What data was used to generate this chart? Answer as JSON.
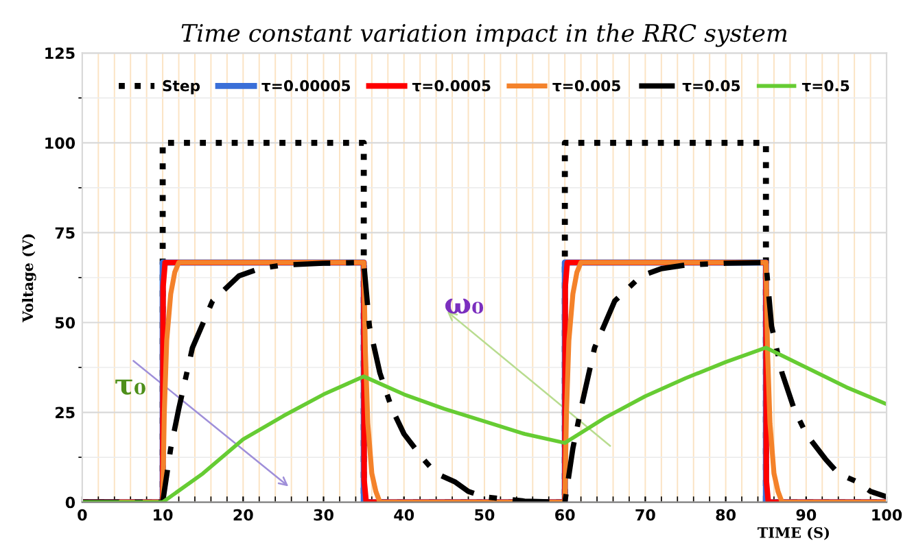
{
  "chart_data": {
    "type": "line",
    "title": "Time constant variation impact in the RRC system",
    "xlabel": "TIME (S)",
    "ylabel": "Voltage (V)",
    "xlim": [
      0,
      100
    ],
    "xticks": [
      0,
      10,
      20,
      30,
      40,
      50,
      60,
      70,
      80,
      90,
      100
    ],
    "ylim": [
      0,
      125
    ],
    "yticks": [
      0,
      25,
      50,
      75,
      100,
      125
    ],
    "grid": true,
    "legend": "top",
    "marker": "none",
    "annotations": [
      "τ₀",
      "ω₀"
    ],
    "series": [
      {
        "name": "Step",
        "color": "#000000",
        "line_style": "dotted",
        "x": [
          0,
          10,
          10,
          35,
          35,
          60,
          60,
          85,
          85,
          100
        ],
        "values": [
          0,
          0,
          100,
          100,
          0,
          0,
          100,
          100,
          0,
          0
        ]
      },
      {
        "name": "τ=0.00005",
        "color": "#3a6fd8",
        "line_style": "solid",
        "x": [
          0,
          10,
          10,
          35,
          35,
          60,
          60,
          85,
          85,
          100
        ],
        "values": [
          0,
          0,
          66.7,
          66.7,
          0,
          0,
          66.7,
          66.7,
          0,
          0
        ]
      },
      {
        "name": "τ=0.0005",
        "color": "#ff0000",
        "line_style": "solid",
        "x": [
          0,
          10,
          10.05,
          10.3,
          35,
          35.05,
          35.3,
          60,
          60.05,
          60.3,
          85,
          85.05,
          85.3,
          100
        ],
        "values": [
          0,
          0,
          60,
          66.7,
          66.7,
          6,
          0,
          0,
          60,
          66.7,
          66.7,
          6,
          0,
          0
        ]
      },
      {
        "name": "τ=0.005",
        "color": "#f4822a",
        "line_style": "solid",
        "x": [
          0,
          10,
          10.2,
          10.5,
          11,
          11.5,
          12,
          35,
          35.2,
          35.5,
          36,
          36.5,
          37,
          60,
          60.2,
          60.5,
          61,
          61.5,
          62,
          85,
          85.2,
          85.5,
          86,
          86.5,
          87,
          100
        ],
        "values": [
          0,
          0,
          25,
          45,
          58,
          64,
          66.7,
          66.7,
          42,
          22,
          8,
          3,
          0,
          0,
          25,
          45,
          58,
          64,
          66.7,
          66.7,
          42,
          22,
          8,
          3,
          0,
          0
        ]
      },
      {
        "name": "τ=0.05",
        "color": "#000000",
        "line_style": "dashdot",
        "x": [
          0,
          10,
          11,
          12,
          13.7,
          16.2,
          19.5,
          22,
          25,
          30,
          35,
          35.7,
          37,
          38.5,
          40,
          42.4,
          44,
          46.3,
          48,
          50,
          55,
          60,
          61,
          62,
          63.7,
          66.2,
          69.5,
          72,
          75,
          80,
          85,
          85.7,
          87,
          88.5,
          90,
          92.4,
          94,
          96.3,
          98,
          100
        ],
        "values": [
          0,
          0,
          15,
          26,
          43,
          56,
          63,
          65,
          66,
          66.5,
          66.7,
          49,
          36,
          26,
          19,
          12,
          8,
          5.7,
          3,
          1.5,
          0.3,
          0,
          15,
          26,
          43,
          56,
          63,
          65,
          66,
          66.5,
          66.7,
          49,
          36,
          26,
          19,
          12,
          8,
          5.7,
          3,
          1.5
        ]
      },
      {
        "name": "τ=0.5",
        "color": "#66cc33",
        "line_style": "solid",
        "x": [
          0,
          10,
          15,
          20,
          25,
          30,
          35,
          40,
          45,
          50,
          55,
          60,
          65,
          70,
          75,
          80,
          85,
          90,
          95,
          100
        ],
        "values": [
          0,
          0,
          8,
          17.5,
          24,
          30,
          35,
          30,
          26,
          22.5,
          19,
          16.5,
          23.5,
          29.5,
          34.5,
          39,
          43,
          37.5,
          32,
          27.3
        ]
      }
    ]
  }
}
